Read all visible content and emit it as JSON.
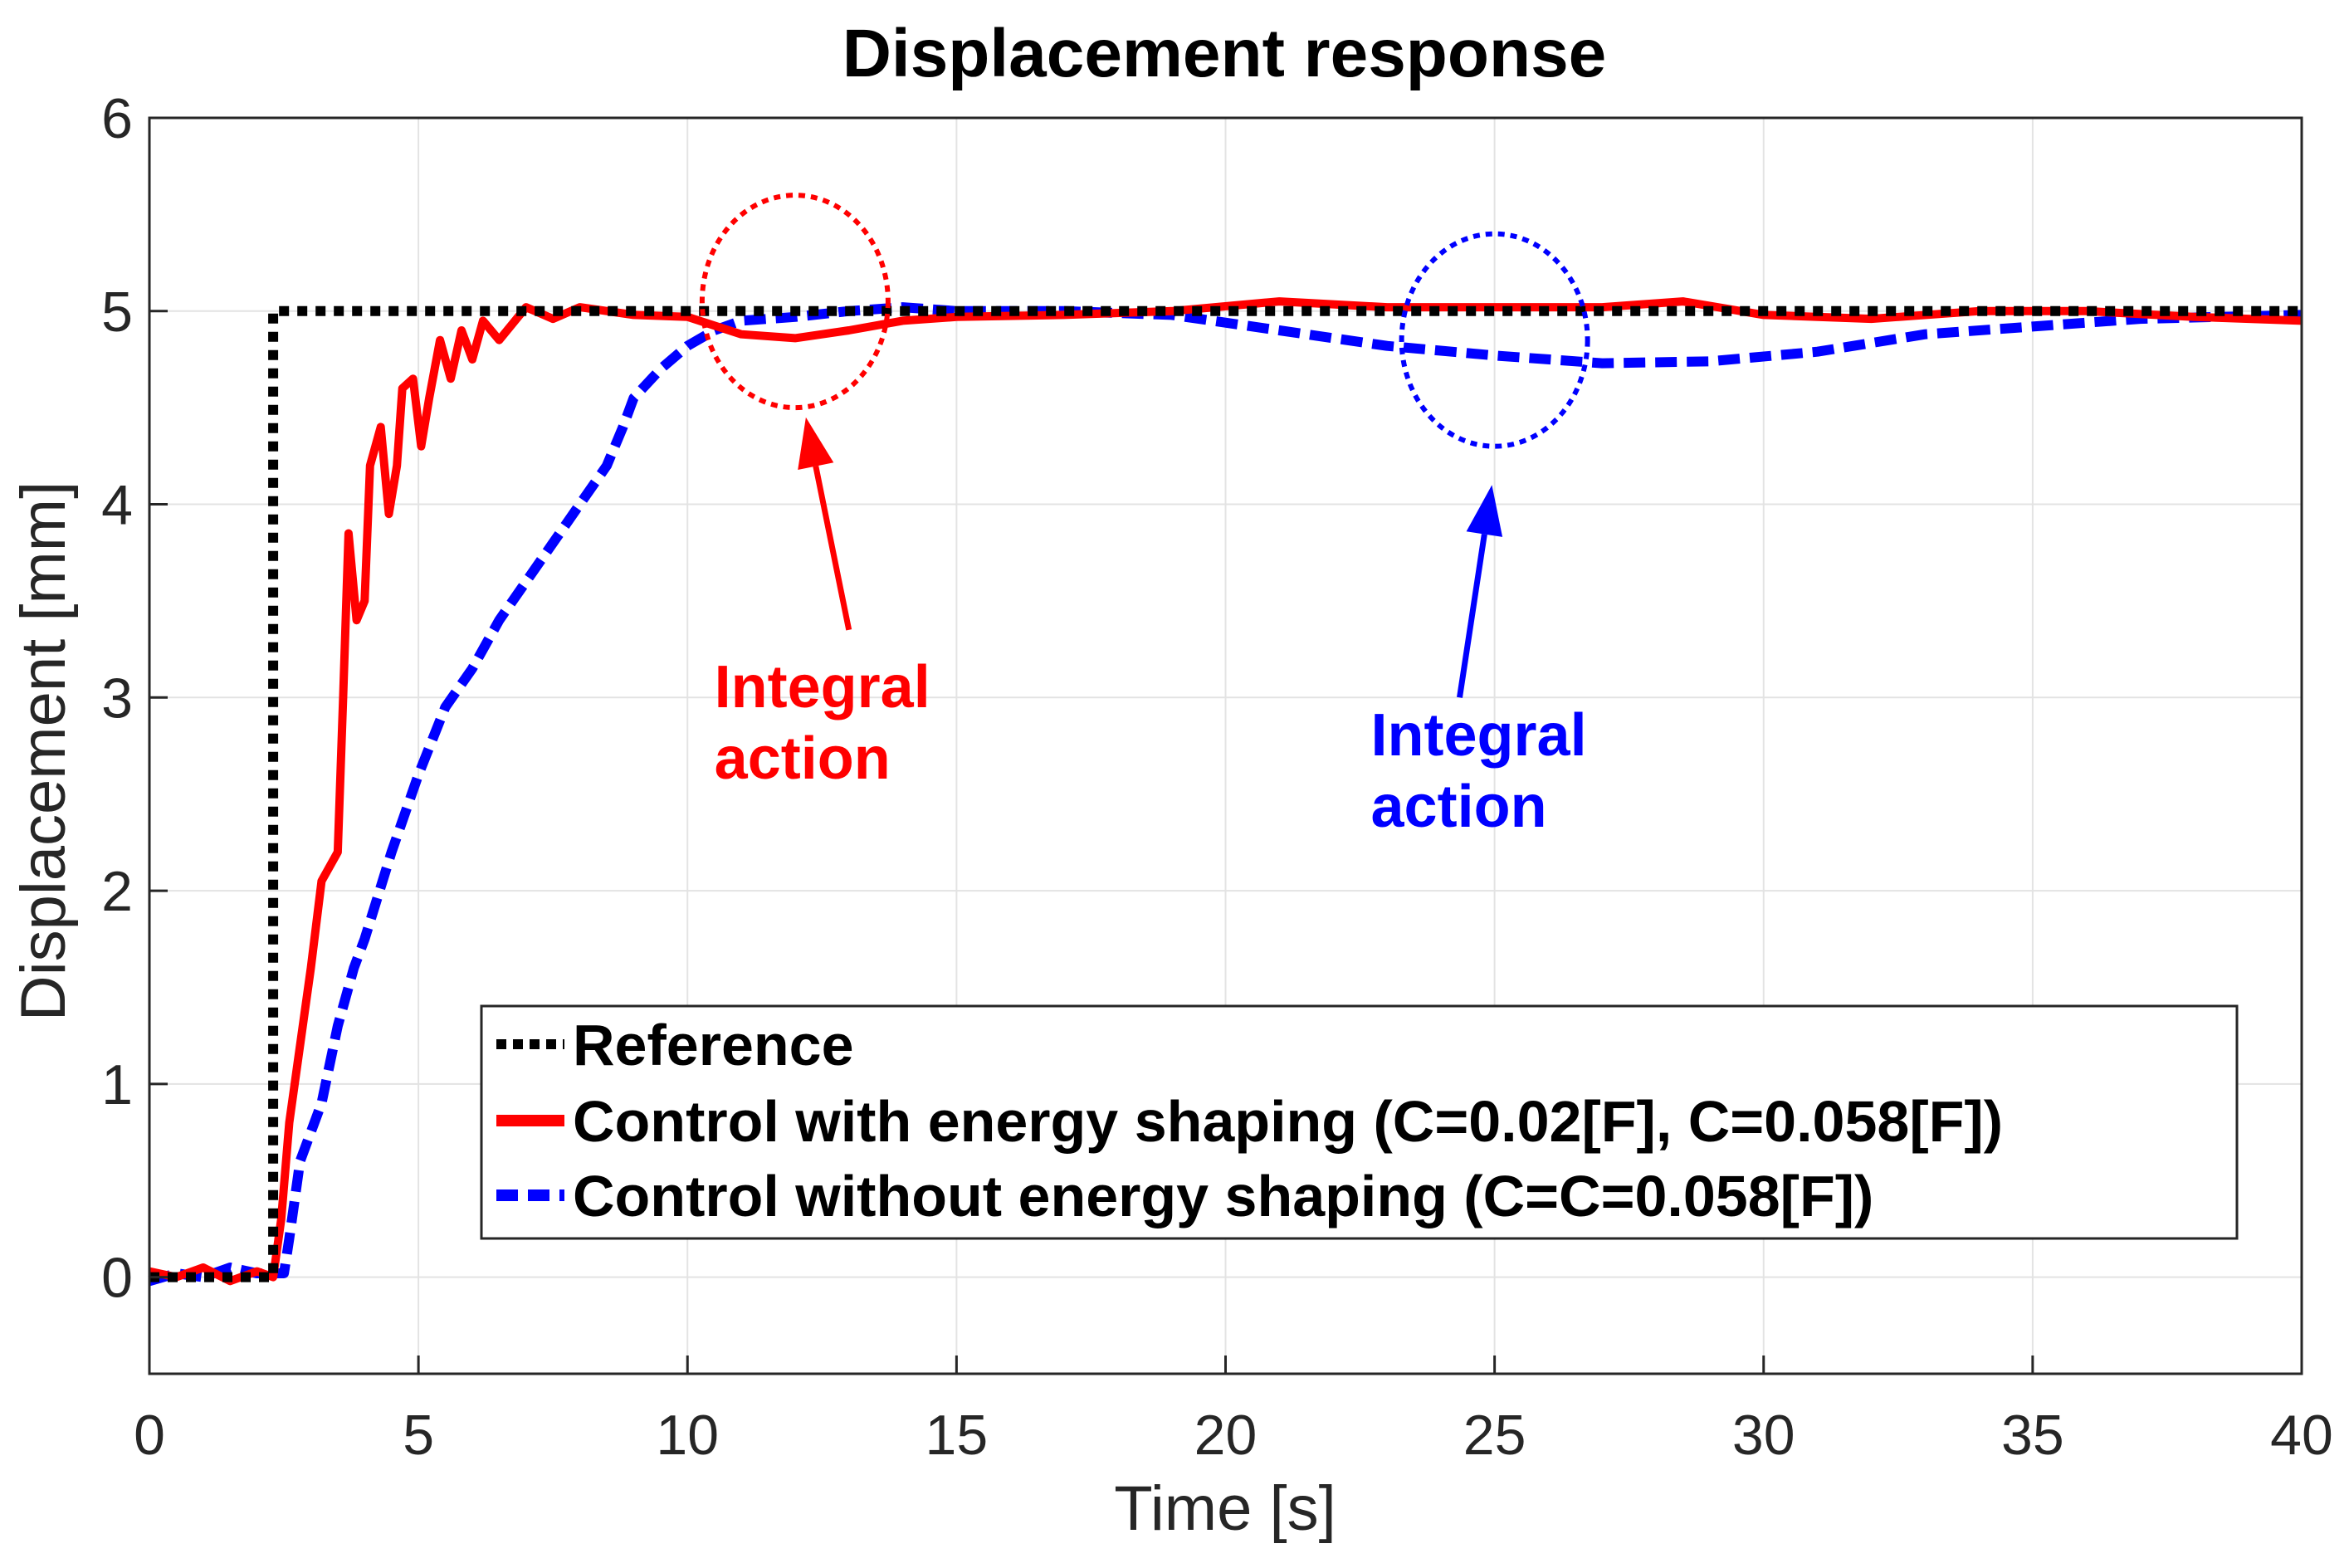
{
  "chart_data": {
    "type": "line",
    "title": "Displacement response",
    "xlabel": "Time [s]",
    "ylabel": "Displacement [mm]",
    "xlim": [
      0,
      40
    ],
    "ylim": [
      -0.5,
      6
    ],
    "xticks": [
      0,
      5,
      10,
      15,
      20,
      25,
      30,
      35,
      40
    ],
    "yticks": [
      0,
      1,
      2,
      3,
      4,
      5,
      6
    ],
    "grid": true,
    "legend_position": "bottom-right",
    "series": [
      {
        "name": "Reference",
        "color": "#000000",
        "style": "dotted",
        "points": [
          [
            0,
            0
          ],
          [
            2.3,
            0
          ],
          [
            2.3,
            5
          ],
          [
            40,
            5
          ]
        ]
      },
      {
        "name": "Control with energy shaping (C=0.02[F], C=0.058[F])",
        "color": "#ff0000",
        "style": "solid",
        "points": [
          [
            0,
            0.03
          ],
          [
            0.5,
            0.0
          ],
          [
            1.0,
            0.05
          ],
          [
            1.5,
            -0.02
          ],
          [
            2.0,
            0.03
          ],
          [
            2.3,
            0.0
          ],
          [
            2.45,
            0.3
          ],
          [
            2.6,
            0.8
          ],
          [
            2.8,
            1.2
          ],
          [
            3.0,
            1.6
          ],
          [
            3.2,
            2.05
          ],
          [
            3.5,
            2.2
          ],
          [
            3.6,
            3.0
          ],
          [
            3.7,
            3.85
          ],
          [
            3.85,
            3.4
          ],
          [
            4.0,
            3.5
          ],
          [
            4.1,
            4.2
          ],
          [
            4.3,
            4.4
          ],
          [
            4.45,
            3.95
          ],
          [
            4.6,
            4.2
          ],
          [
            4.7,
            4.6
          ],
          [
            4.9,
            4.65
          ],
          [
            5.05,
            4.3
          ],
          [
            5.2,
            4.55
          ],
          [
            5.4,
            4.85
          ],
          [
            5.6,
            4.65
          ],
          [
            5.8,
            4.9
          ],
          [
            6.0,
            4.75
          ],
          [
            6.2,
            4.95
          ],
          [
            6.5,
            4.85
          ],
          [
            7.0,
            5.02
          ],
          [
            7.5,
            4.96
          ],
          [
            8.0,
            5.02
          ],
          [
            9.0,
            4.98
          ],
          [
            10.0,
            4.97
          ],
          [
            11.0,
            4.88
          ],
          [
            12.0,
            4.86
          ],
          [
            13.0,
            4.9
          ],
          [
            14.0,
            4.95
          ],
          [
            15.0,
            4.97
          ],
          [
            17.0,
            4.98
          ],
          [
            19.0,
            5.0
          ],
          [
            21.0,
            5.05
          ],
          [
            23.0,
            5.02
          ],
          [
            25.0,
            5.02
          ],
          [
            27.0,
            5.02
          ],
          [
            28.5,
            5.05
          ],
          [
            30.0,
            4.98
          ],
          [
            32.0,
            4.96
          ],
          [
            34.0,
            5.0
          ],
          [
            36.0,
            5.0
          ],
          [
            38.0,
            4.97
          ],
          [
            40.0,
            4.95
          ]
        ]
      },
      {
        "name": "Control without energy shaping (C=C=0.058[F])",
        "color": "#0000ff",
        "style": "dashed",
        "points": [
          [
            0,
            -0.02
          ],
          [
            0.5,
            0.02
          ],
          [
            1.0,
            0.0
          ],
          [
            1.5,
            0.05
          ],
          [
            2.0,
            0.02
          ],
          [
            2.5,
            0.02
          ],
          [
            2.6,
            0.2
          ],
          [
            2.8,
            0.6
          ],
          [
            3.2,
            0.9
          ],
          [
            3.5,
            1.3
          ],
          [
            3.8,
            1.6
          ],
          [
            4.0,
            1.75
          ],
          [
            4.5,
            2.2
          ],
          [
            5.0,
            2.6
          ],
          [
            5.5,
            2.95
          ],
          [
            6.0,
            3.15
          ],
          [
            6.5,
            3.4
          ],
          [
            7.0,
            3.6
          ],
          [
            7.5,
            3.8
          ],
          [
            8.0,
            4.0
          ],
          [
            8.5,
            4.2
          ],
          [
            8.8,
            4.4
          ],
          [
            9.0,
            4.55
          ],
          [
            9.5,
            4.7
          ],
          [
            10.0,
            4.82
          ],
          [
            10.5,
            4.9
          ],
          [
            11.0,
            4.95
          ],
          [
            12.0,
            4.97
          ],
          [
            13.0,
            5.0
          ],
          [
            14.0,
            5.02
          ],
          [
            15.0,
            5.0
          ],
          [
            17.0,
            5.0
          ],
          [
            19.0,
            4.98
          ],
          [
            21.0,
            4.9
          ],
          [
            23.0,
            4.82
          ],
          [
            25.0,
            4.77
          ],
          [
            27.0,
            4.73
          ],
          [
            29.0,
            4.74
          ],
          [
            31.0,
            4.79
          ],
          [
            33.0,
            4.88
          ],
          [
            35.0,
            4.92
          ],
          [
            37.0,
            4.96
          ],
          [
            40.0,
            4.98
          ]
        ]
      }
    ],
    "annotations": [
      {
        "text_line1": "Integral",
        "text_line2": "action",
        "color": "#ff0000",
        "circle_center": [
          12,
          5.05
        ],
        "text_at": [
          10.5,
          2.95
        ],
        "arrow_from": [
          13,
          3.35
        ],
        "arrow_to": [
          12.2,
          4.45
        ]
      },
      {
        "text_line1": "Integral",
        "text_line2": "action",
        "color": "#0000ff",
        "circle_center": [
          25,
          4.85
        ],
        "text_at": [
          22.7,
          2.7
        ],
        "arrow_from": [
          24.35,
          3.0
        ],
        "arrow_to": [
          24.95,
          4.1
        ]
      }
    ]
  }
}
